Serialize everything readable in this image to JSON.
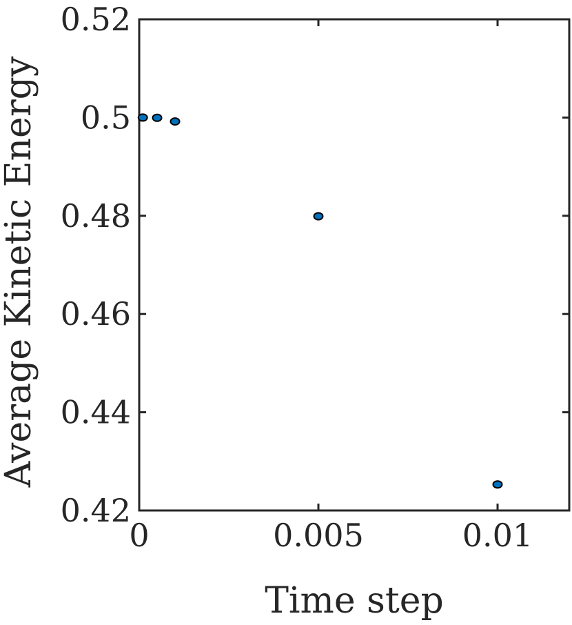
{
  "chart_data": {
    "type": "scatter",
    "title": "",
    "xlabel": "Time step",
    "ylabel": "Average Kinetic Energy",
    "xlim": [
      0,
      0.012
    ],
    "ylim": [
      0.42,
      0.52
    ],
    "xticks": [
      0,
      0.005,
      0.01
    ],
    "xtick_labels": [
      "0",
      "0.005",
      "0.01"
    ],
    "yticks": [
      0.42,
      0.44,
      0.46,
      0.48,
      0.5,
      0.52
    ],
    "ytick_labels": [
      "0.42",
      "0.44",
      "0.46",
      "0.48",
      "0.5",
      "0.52"
    ],
    "grid": false,
    "series": [
      {
        "x": [
          0.0001,
          0.0005,
          0.001,
          0.005,
          0.01
        ],
        "y": [
          0.5,
          0.49995,
          0.4992,
          0.4799,
          0.4253
        ],
        "color": "#0072BD",
        "edge_color": "#000000"
      }
    ]
  }
}
